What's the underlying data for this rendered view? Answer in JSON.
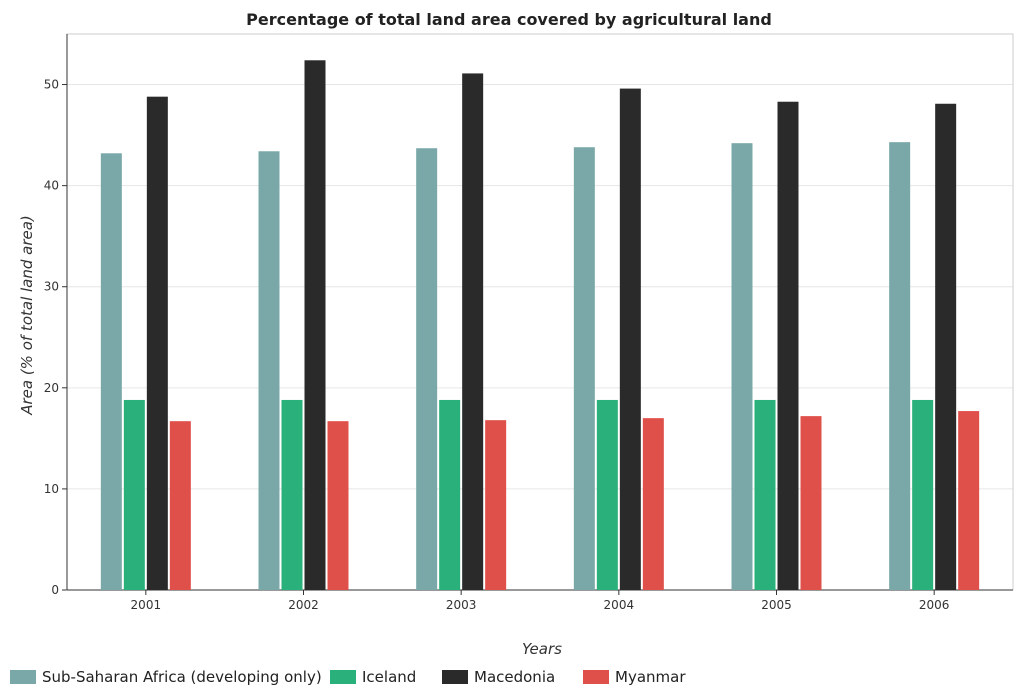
{
  "chart_data": {
    "type": "bar",
    "title": "Percentage of total land area covered by agricultural land",
    "xlabel": "Years",
    "ylabel": "Area (% of total land area)",
    "categories": [
      "2001",
      "2002",
      "2003",
      "2004",
      "2005",
      "2006"
    ],
    "ylim": [
      0,
      55
    ],
    "yticks": [
      0,
      10,
      20,
      30,
      40,
      50
    ],
    "grid": true,
    "legend_position": "bottom",
    "series": [
      {
        "name": "Sub-Saharan Africa (developing only)",
        "color": "#7aa8a8",
        "values": [
          43.2,
          43.4,
          43.7,
          43.8,
          44.2,
          44.3
        ]
      },
      {
        "name": "Iceland",
        "color": "#2ab07a",
        "values": [
          18.8,
          18.8,
          18.8,
          18.8,
          18.8,
          18.8
        ]
      },
      {
        "name": "Macedonia",
        "color": "#2a2a2a",
        "values": [
          48.8,
          52.4,
          51.1,
          49.6,
          48.3,
          48.1
        ]
      },
      {
        "name": "Myanmar",
        "color": "#e0504b",
        "values": [
          16.7,
          16.7,
          16.8,
          17.0,
          17.2,
          17.7
        ]
      }
    ]
  }
}
